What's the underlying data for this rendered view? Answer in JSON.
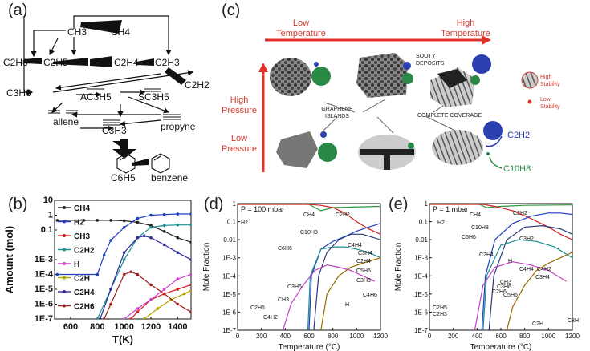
{
  "panel_labels": {
    "a": "(a)",
    "b": "(b)",
    "c": "(c)",
    "d": "(d)",
    "e": "(e)"
  },
  "panel_a": {
    "species": {
      "CH3": "CH3",
      "CH4": "CH4",
      "C2H6": "C2H6",
      "C2H5": "C2H5",
      "C2H4": "C2H4",
      "C2H3": "C2H3",
      "C3H6": "C3H6",
      "AC3H5": "AC3H5",
      "SC3H5": "SC3H5",
      "C2H2": "C2H2",
      "allene": "allene",
      "propyne": "propyne",
      "C3H3": "C3H3",
      "C6H5": "C6H5",
      "benzene": "benzene"
    }
  },
  "panel_c": {
    "low_temperature": "Low\nTemperature",
    "high_temperature": "High\nTemperature",
    "high_pressure": "High\nPressure",
    "low_pressure": "Low\nPressure",
    "sooty_deposits": "SOOTY\nDEPOSITS",
    "graphene_islands": "GRAPHENE\nISLANDS",
    "complete_coverage": "COMPLETE COVERAGE",
    "c2h2": "C2H2",
    "c10h8": "C10H8",
    "high_stability": "High\nStability",
    "low_stability": "Low\nStability",
    "colors": {
      "arrow": "#e0302a",
      "blue": "#2a3fb0",
      "green": "#2a8a45",
      "red_text": "#d23a2e"
    }
  },
  "chart_data": [
    {
      "panel": "b",
      "type": "line",
      "xlabel": "T(K)",
      "ylabel": "Amount (mol)",
      "x_ticks": [
        "600",
        "800",
        "1000",
        "1200",
        "1400"
      ],
      "y_ticks": [
        "10",
        "1",
        "0.1",
        "1E-3",
        "1E-4",
        "1E-5",
        "1E-6",
        "1E-7"
      ],
      "xlim": [
        480,
        1500
      ],
      "ylim_log10": [
        -7,
        1
      ],
      "series": [
        {
          "name": "CH4",
          "color": "#222222",
          "x": [
            500,
            700,
            800,
            900,
            1000,
            1100,
            1200,
            1300,
            1400,
            1500
          ],
          "y": [
            0.45,
            0.45,
            0.45,
            0.45,
            0.42,
            0.33,
            0.2,
            0.08,
            0.03,
            0.015
          ]
        },
        {
          "name": "H2",
          "color": "#1f3fbf",
          "x": [
            500,
            800,
            850,
            900,
            1000,
            1100,
            1200,
            1300,
            1400,
            1500
          ],
          "y": [
            0.0001,
            0.0001,
            0.002,
            0.02,
            0.15,
            0.6,
            1.0,
            1.1,
            1.2,
            1.2
          ]
        },
        {
          "name": "CH3",
          "color": "#d22020",
          "x": [
            1050,
            1100,
            1200,
            1300,
            1400,
            1500
          ],
          "y": [
            1e-07,
            3e-07,
            2e-06,
            5e-06,
            1e-05,
            2e-05
          ]
        },
        {
          "name": "C2H2",
          "color": "#1c8f8f",
          "x": [
            800,
            900,
            1000,
            1100,
            1200,
            1300,
            1400,
            1500
          ],
          "y": [
            1e-07,
            1e-05,
            0.001,
            0.03,
            0.15,
            0.2,
            0.22,
            0.22
          ]
        },
        {
          "name": "H",
          "color": "#d040d0",
          "x": [
            1000,
            1100,
            1200,
            1300,
            1400,
            1500
          ],
          "y": [
            1e-07,
            5e-07,
            2e-06,
            1e-05,
            5e-05,
            0.0001
          ]
        },
        {
          "name": "C2H",
          "color": "#b8a000",
          "x": [
            1150,
            1250,
            1350,
            1450,
            1500
          ],
          "y": [
            1e-07,
            5e-07,
            2e-06,
            5e-06,
            8e-06
          ]
        },
        {
          "name": "C2H4",
          "color": "#2c2c9a",
          "x": [
            820,
            900,
            1000,
            1100,
            1150,
            1200,
            1300,
            1400,
            1500
          ],
          "y": [
            1e-07,
            1e-05,
            0.003,
            0.03,
            0.04,
            0.03,
            0.01,
            0.003,
            0.001
          ]
        },
        {
          "name": "C2H6",
          "color": "#a02020",
          "x": [
            850,
            900,
            1000,
            1050,
            1100,
            1200,
            1300,
            1400,
            1500
          ],
          "y": [
            1e-07,
            1e-06,
            0.0001,
            0.00015,
            0.0001,
            2e-05,
            5e-06,
            1e-06,
            3e-07
          ]
        }
      ]
    },
    {
      "panel": "d",
      "type": "line",
      "title": "P = 100 mbar",
      "xlabel": "Temperature (°C)",
      "ylabel": "Mole Fraction",
      "x_ticks": [
        "0",
        "200",
        "400",
        "600",
        "800",
        "1000",
        "1200"
      ],
      "y_ticks": [
        "1",
        "0.1",
        "0.01",
        "1E-3",
        "1E-4",
        "1E-5",
        "1E-6",
        "1E-7"
      ],
      "xlim": [
        0,
        1200
      ],
      "ylim_log10": [
        -7,
        0
      ],
      "labels": [
        "H2",
        "CH4",
        "C2H2",
        "C10H8",
        "C6H6",
        "C4H4",
        "C3H4",
        "C2H4",
        "C3H6",
        "C2H6",
        "C5H6",
        "CH3",
        "C4H2",
        "C3H3",
        "H",
        "C4H6"
      ],
      "series": [
        {
          "name": "H2",
          "color": "#2a9a3a",
          "x": [
            0,
            500,
            600,
            650,
            700,
            800,
            1200
          ],
          "y": [
            0.95,
            0.95,
            0.9,
            0.6,
            0.4,
            0.6,
            0.7
          ]
        },
        {
          "name": "CH4",
          "color": "#d22020",
          "x": [
            0,
            600,
            700,
            800,
            900,
            1000,
            1100,
            1200
          ],
          "y": [
            0.9,
            0.9,
            0.8,
            0.6,
            0.3,
            0.1,
            0.04,
            0.02
          ]
        },
        {
          "name": "C2H2",
          "color": "#1f3fbf",
          "x": [
            600,
            620,
            700,
            800,
            900,
            1000,
            1100,
            1200
          ],
          "y": [
            1e-07,
            0.0001,
            0.003,
            0.008,
            0.015,
            0.03,
            0.05,
            0.08
          ]
        },
        {
          "name": "C6H6",
          "color": "#1c8f8f",
          "x": [
            590,
            610,
            700,
            800,
            900,
            1000,
            1100,
            1200
          ],
          "y": [
            1e-07,
            0.0001,
            0.003,
            0.004,
            0.004,
            0.003,
            0.002,
            0.001
          ]
        },
        {
          "name": "C10H8",
          "color": "#2a3a7a",
          "x": [
            640,
            680,
            750,
            850,
            950,
            1050,
            1200
          ],
          "y": [
            1e-07,
            0.0001,
            0.002,
            0.01,
            0.02,
            0.02,
            0.01
          ]
        },
        {
          "name": "C3H6",
          "color": "#c040c0",
          "x": [
            380,
            450,
            550,
            650,
            750,
            850,
            950,
            1050,
            1150
          ],
          "y": [
            1e-07,
            3e-06,
            3e-05,
            0.0002,
            0.0004,
            0.0003,
            0.0002,
            0.0001,
            5e-05
          ]
        },
        {
          "name": "C4H4",
          "color": "#9a6a00",
          "x": [
            700,
            750,
            850,
            950,
            1050,
            1150,
            1200
          ],
          "y": [
            1e-07,
            1e-05,
            0.0001,
            0.0003,
            0.0005,
            0.0008,
            0.001
          ]
        }
      ]
    },
    {
      "panel": "e",
      "type": "line",
      "title": "P = 1 mbar",
      "xlabel": "Temperature (°C)",
      "ylabel": "Mole Fraction",
      "x_ticks": [
        "0",
        "200",
        "400",
        "600",
        "800",
        "1000",
        "1200"
      ],
      "y_ticks": [
        "1",
        "0.1",
        "0.01",
        "1E-3",
        "1E-4",
        "1E-5",
        "1E-6",
        "1E-7"
      ],
      "xlim": [
        0,
        1200
      ],
      "ylim_log10": [
        -7,
        0
      ],
      "labels": [
        "H2",
        "CH4",
        "C2H2",
        "C10H8",
        "C6H6",
        "C2H4",
        "C3H2",
        "H",
        "C4H4",
        "C3H4",
        "C4H2",
        "CH3",
        "C3H6",
        "C2H6",
        "C5H6",
        "C2H5",
        "C2H3",
        "C2H",
        "C3H"
      ],
      "series": [
        {
          "name": "H2",
          "color": "#2a9a3a",
          "x": [
            0,
            300,
            420,
            480,
            600,
            800,
            1200
          ],
          "y": [
            0.95,
            0.95,
            0.9,
            0.6,
            0.7,
            0.8,
            0.85
          ]
        },
        {
          "name": "CH4",
          "color": "#d22020",
          "x": [
            0,
            450,
            550,
            700,
            850,
            1000,
            1100,
            1200
          ],
          "y": [
            0.9,
            0.9,
            0.7,
            0.4,
            0.15,
            0.05,
            0.02,
            0.01
          ]
        },
        {
          "name": "C2H2",
          "color": "#1f3fbf",
          "x": [
            440,
            470,
            550,
            700,
            850,
            1000,
            1100,
            1200
          ],
          "y": [
            1e-07,
            0.0001,
            0.01,
            0.08,
            0.2,
            0.3,
            0.3,
            0.25
          ]
        },
        {
          "name": "C6H6",
          "color": "#1c8f8f",
          "x": [
            450,
            480,
            600,
            750,
            900,
            1050,
            1200
          ],
          "y": [
            1e-07,
            0.0001,
            0.005,
            0.01,
            0.008,
            0.004,
            0.001
          ]
        },
        {
          "name": "C10H8",
          "color": "#2a3a7a",
          "x": [
            500,
            540,
            650,
            800,
            950,
            1100,
            1200
          ],
          "y": [
            1e-07,
            0.0001,
            0.01,
            0.05,
            0.06,
            0.04,
            0.02
          ]
        },
        {
          "name": "C2H4",
          "color": "#c040c0",
          "x": [
            380,
            450,
            550,
            700,
            850,
            1000,
            1150
          ],
          "y": [
            1e-07,
            3e-05,
            0.0003,
            0.0006,
            0.0004,
            0.0002,
            5e-05
          ]
        },
        {
          "name": "C3H6",
          "color": "#9a6a00",
          "x": [
            650,
            700,
            800,
            900,
            1000,
            1100,
            1200
          ],
          "y": [
            1e-07,
            2e-06,
            3e-05,
            0.0002,
            0.0005,
            0.001,
            0.002
          ]
        }
      ]
    }
  ]
}
